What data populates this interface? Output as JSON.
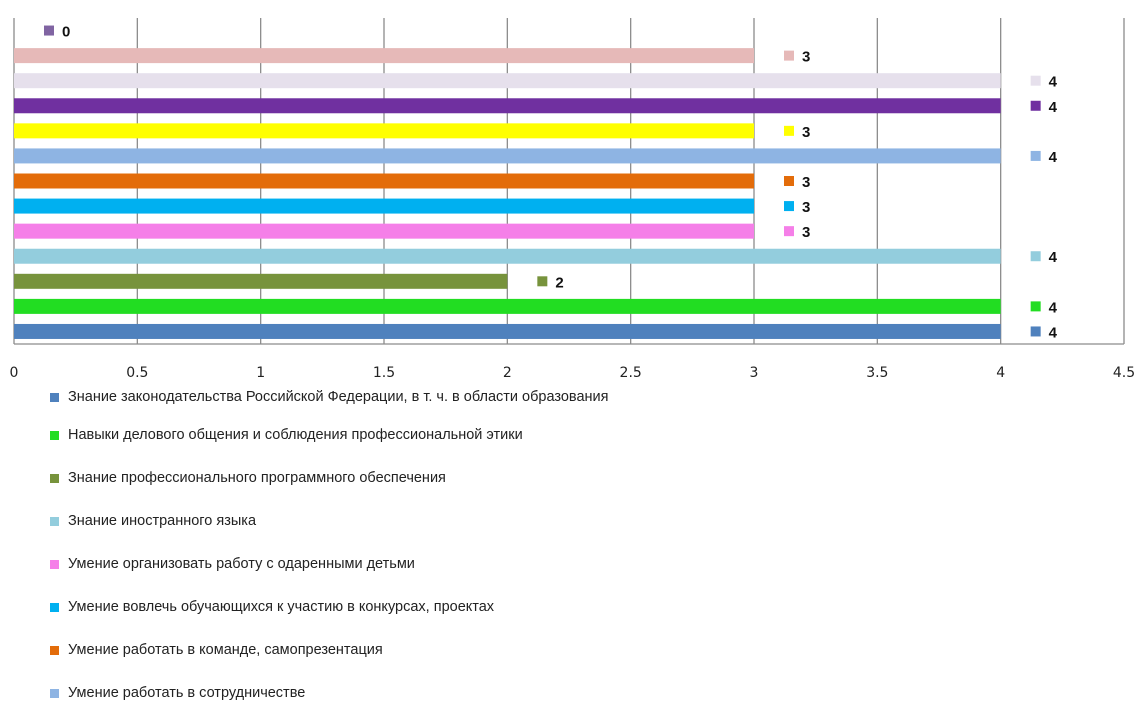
{
  "chart_data": {
    "type": "bar",
    "orientation": "horizontal",
    "xlim": [
      0,
      4.5
    ],
    "x_ticks": [
      "0",
      "0.5",
      "1",
      "1.5",
      "2",
      "2.5",
      "3",
      "3.5",
      "4",
      "4.5"
    ],
    "grid": true,
    "legend_placement": "bottom",
    "series": [
      {
        "name": "Знание законодательства Российской Федерации, в т. ч. в области образования",
        "value": 4,
        "label": "4",
        "color": "#4F81BD"
      },
      {
        "name": "Навыки делового общения и соблюдения профессиональной этики",
        "value": 4,
        "label": "4",
        "color": "#22DD22"
      },
      {
        "name": "Знание профессионального программного обеспечения",
        "value": 2,
        "label": "2",
        "color": "#77933C"
      },
      {
        "name": "Знание иностранного языка",
        "value": 4,
        "label": "4",
        "color": "#93CDDD"
      },
      {
        "name": "Умение организовать работу с одаренными детьми",
        "value": 3,
        "label": "3",
        "color": "#F57FE8"
      },
      {
        "name": "Умение вовлечь обучающихся к участию в конкурсах, проектах",
        "value": 3,
        "label": "3",
        "color": "#00B0F0"
      },
      {
        "name": "Умение работать в команде, самопрезентация",
        "value": 3,
        "label": "3",
        "color": "#E36C0A"
      },
      {
        "name": "Умение работать в сотрудничестве",
        "value": 4,
        "label": "4",
        "color": "#8EB4E3"
      },
      {
        "name": "",
        "value": 3,
        "label": "3",
        "color": "#FFFF00"
      },
      {
        "name": "",
        "value": 4,
        "label": "4",
        "color": "#7030A0"
      },
      {
        "name": "",
        "value": 4,
        "label": "4",
        "color": "#E6E0EC"
      },
      {
        "name": "",
        "value": 3,
        "label": "3",
        "color": "#E6B9B8"
      },
      {
        "name": "",
        "value": 0,
        "label": "0",
        "color": "#8064A2"
      }
    ]
  }
}
